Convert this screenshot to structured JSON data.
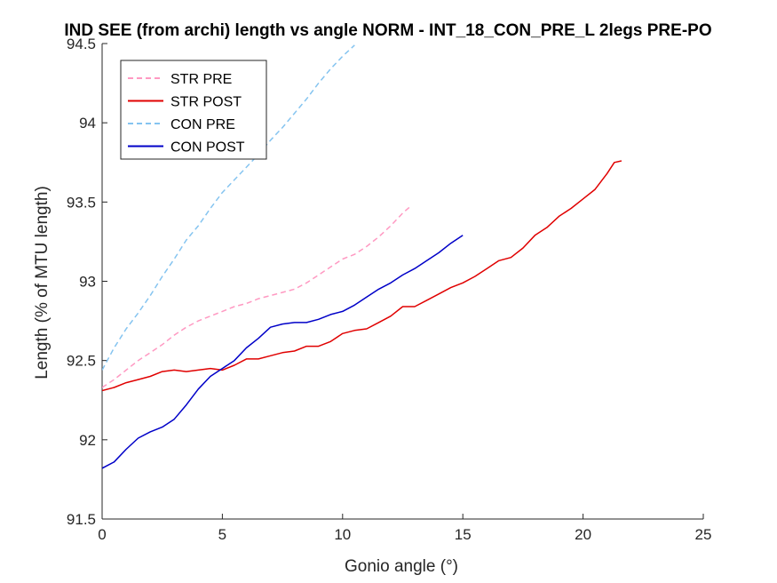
{
  "chart_data": {
    "type": "line",
    "title": "IND SEE (from archi) length vs angle NORM - INT_18_CON_PRE_L 2legs PRE-PO",
    "xlabel": "Gonio angle (°)",
    "ylabel": "Length (% of MTU length)",
    "xlim": [
      0,
      25
    ],
    "ylim": [
      91.5,
      94.5
    ],
    "xticks": [
      "0",
      "5",
      "10",
      "15",
      "20",
      "25"
    ],
    "yticks": [
      "91.5",
      "92",
      "92.5",
      "93",
      "93.5",
      "94",
      "94.5"
    ],
    "grid": false,
    "legend_position": "top-left",
    "series": [
      {
        "name": "STR PRE",
        "color": "#ff99c2",
        "style": "dashed",
        "x": [
          0,
          0.5,
          1,
          1.5,
          2,
          2.5,
          3,
          3.5,
          4,
          4.5,
          5,
          5.5,
          6,
          6.5,
          7,
          7.5,
          8,
          8.5,
          9,
          9.5,
          10,
          10.5,
          11,
          11.5,
          12,
          12.5,
          12.8
        ],
        "y": [
          92.33,
          92.38,
          92.44,
          92.5,
          92.55,
          92.6,
          92.66,
          92.71,
          92.75,
          92.78,
          92.81,
          92.84,
          92.86,
          92.89,
          92.91,
          92.93,
          92.95,
          92.99,
          93.04,
          93.09,
          93.14,
          93.17,
          93.22,
          93.28,
          93.35,
          93.43,
          93.47
        ]
      },
      {
        "name": "STR POST",
        "color": "#e00000",
        "style": "solid",
        "x": [
          0,
          0.5,
          1,
          1.5,
          2,
          2.5,
          3,
          3.5,
          4,
          4.5,
          5,
          5.5,
          6,
          6.5,
          7,
          7.5,
          8,
          8.5,
          9,
          9.5,
          10,
          10.5,
          11,
          11.5,
          12,
          12.5,
          13,
          13.5,
          14,
          14.5,
          15,
          15.5,
          16,
          16.5,
          17,
          17.5,
          18,
          18.5,
          19,
          19.5,
          20,
          20.5,
          21,
          21.3,
          21.6
        ],
        "y": [
          92.31,
          92.33,
          92.36,
          92.38,
          92.4,
          92.43,
          92.44,
          92.43,
          92.44,
          92.45,
          92.44,
          92.47,
          92.51,
          92.51,
          92.53,
          92.55,
          92.56,
          92.59,
          92.59,
          92.62,
          92.67,
          92.69,
          92.7,
          92.74,
          92.78,
          92.84,
          92.84,
          92.88,
          92.92,
          92.96,
          92.99,
          93.03,
          93.08,
          93.13,
          93.15,
          93.21,
          93.29,
          93.34,
          93.41,
          93.46,
          93.52,
          93.58,
          93.68,
          93.75,
          93.76
        ]
      },
      {
        "name": "CON PRE",
        "color": "#85c4f0",
        "style": "dashed",
        "x": [
          0,
          0.5,
          1,
          1.5,
          2,
          2.5,
          3,
          3.5,
          4,
          4.5,
          5,
          5.5,
          6,
          6.5,
          7,
          7.5,
          8,
          8.5,
          9,
          9.5,
          10,
          10.5
        ],
        "y": [
          92.44,
          92.58,
          92.7,
          92.8,
          92.91,
          93.03,
          93.14,
          93.26,
          93.35,
          93.46,
          93.56,
          93.64,
          93.72,
          93.8,
          93.89,
          93.97,
          94.06,
          94.15,
          94.25,
          94.34,
          94.42,
          94.49
        ]
      },
      {
        "name": "CON POST",
        "color": "#0000c8",
        "style": "solid",
        "x": [
          0,
          0.5,
          1,
          1.5,
          2,
          2.5,
          3,
          3.5,
          4,
          4.5,
          5,
          5.5,
          6,
          6.5,
          7,
          7.5,
          8,
          8.5,
          9,
          9.5,
          10,
          10.5,
          11,
          11.5,
          12,
          12.5,
          13,
          13.5,
          14,
          14.5,
          15
        ],
        "y": [
          91.82,
          91.86,
          91.94,
          92.01,
          92.05,
          92.08,
          92.13,
          92.22,
          92.32,
          92.4,
          92.45,
          92.5,
          92.58,
          92.64,
          92.71,
          92.73,
          92.74,
          92.74,
          92.76,
          92.79,
          92.81,
          92.85,
          92.9,
          92.95,
          92.99,
          93.04,
          93.08,
          93.13,
          93.18,
          93.24,
          93.29
        ]
      }
    ]
  }
}
